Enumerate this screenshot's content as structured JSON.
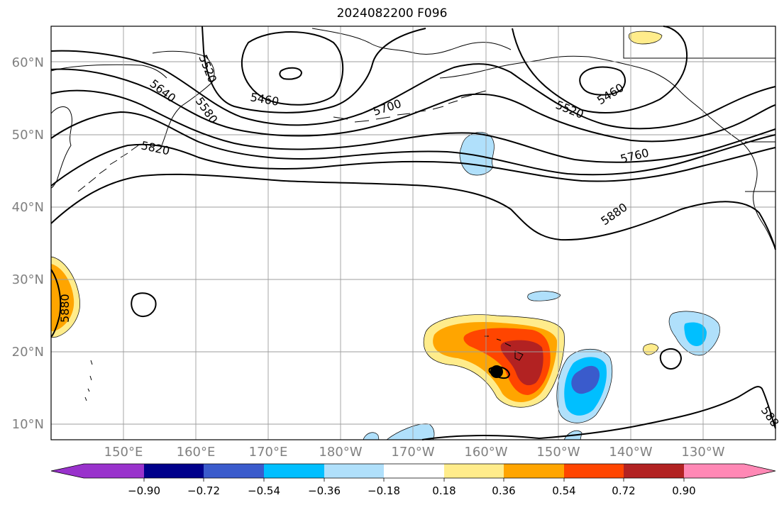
{
  "title": "2024082200 F096",
  "lat_labels": [
    "60°N",
    "50°N",
    "40°N",
    "30°N",
    "20°N",
    "10°N"
  ],
  "lon_labels": [
    "150°E",
    "160°E",
    "170°E",
    "180°W",
    "170°W",
    "160°W",
    "150°W",
    "140°W",
    "130°W"
  ],
  "contour_labels": [
    "5640",
    "5580",
    "5520",
    "5460",
    "5700",
    "5520",
    "5460",
    "5820",
    "5760",
    "5880",
    "5880",
    "588"
  ],
  "colorbar": {
    "ticks": [
      "−0.90",
      "−0.72",
      "−0.54",
      "−0.36",
      "−0.18",
      "0.18",
      "0.36",
      "0.54",
      "0.72",
      "0.90"
    ],
    "colors": [
      "#9932cc",
      "#00008b",
      "#3a5bcc",
      "#00bfff",
      "#b0e0fb",
      "#ffffff",
      "#ffec8b",
      "#ffa500",
      "#ff4500",
      "#b22222",
      "#ff88b5"
    ]
  }
}
